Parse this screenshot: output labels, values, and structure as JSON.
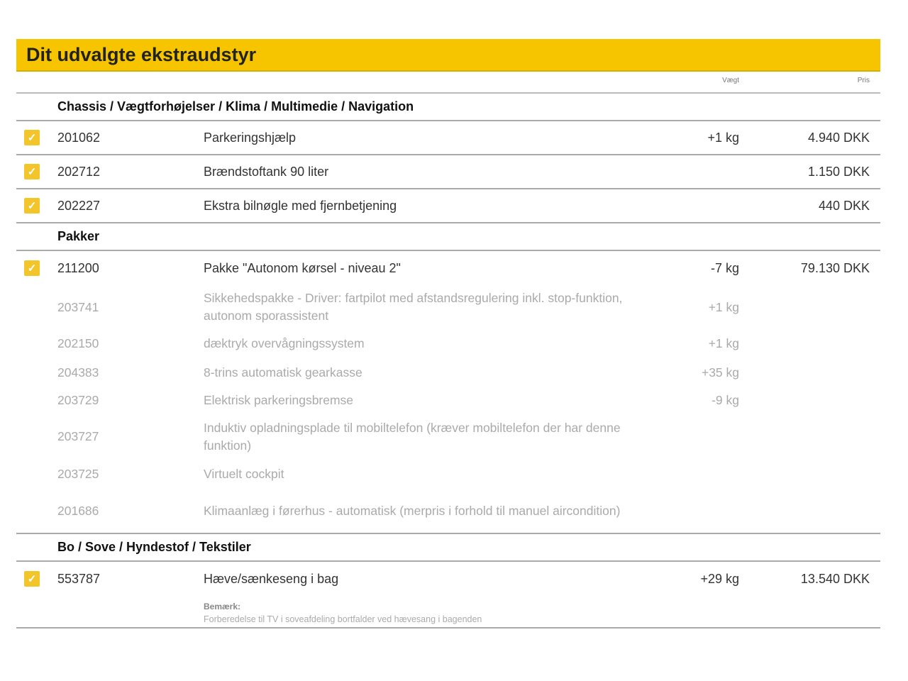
{
  "title": "Dit udvalgte ekstraudstyr",
  "columns": {
    "weight": "Vægt",
    "price": "Pris"
  },
  "rows": [
    {
      "type": "section",
      "label": "Chassis / Vægtforhøjelser / Klima / Multimedie / Navigation"
    },
    {
      "type": "item",
      "checked": true,
      "code": "201062",
      "desc": "Parkeringshjælp",
      "weight": "+1 kg",
      "price": "4.940 DKK"
    },
    {
      "type": "item",
      "checked": true,
      "code": "202712",
      "desc": "Brændstoftank 90 liter",
      "weight": "",
      "price": "1.150 DKK"
    },
    {
      "type": "item",
      "checked": true,
      "code": "202227",
      "desc": "Ekstra bilnøgle med fjernbetjening",
      "weight": "",
      "price": "440 DKK"
    },
    {
      "type": "section",
      "label": "Pakker"
    },
    {
      "type": "item",
      "checked": true,
      "code": "211200",
      "desc": "Pakke \"Autonom kørsel - niveau 2\"",
      "weight": "-7 kg",
      "price": "79.130 DKK",
      "nob": true
    },
    {
      "type": "sub",
      "code": "203741",
      "desc": "Sikkehedspakke - Driver: fartpilot med afstandsregulering inkl. stop-funktion, autonom sporassistent",
      "weight": "+1 kg",
      "h": 62
    },
    {
      "type": "sub",
      "code": "202150",
      "desc": "dæktryk overvågningssystem",
      "weight": "+1 kg",
      "h": 41
    },
    {
      "type": "sub",
      "code": "204383",
      "desc": "8-trins automatisk gearkasse",
      "weight": "+35 kg",
      "h": 40
    },
    {
      "type": "sub",
      "code": "203729",
      "desc": "Elektrisk parkeringsbremse",
      "weight": "-9 kg",
      "h": 39
    },
    {
      "type": "sub",
      "code": "203727",
      "desc": "Induktiv opladningsplade til mobiltelefon (kræver mobiltelefon der har denne funktion)",
      "weight": "",
      "h": 63
    },
    {
      "type": "sub",
      "code": "203725",
      "desc": "Virtuelt cockpit",
      "weight": "",
      "h": 42
    },
    {
      "type": "sub",
      "code": "201686",
      "desc": "Klimaanlæg i førerhus - automatisk (merpris i forhold til manuel aircondition)",
      "weight": "",
      "h": 64,
      "last": true
    },
    {
      "type": "section",
      "label": "Bo / Sove / Hyndestof / Tekstiler"
    },
    {
      "type": "item",
      "checked": true,
      "code": "553787",
      "desc": "Hæve/sænkeseng i bag",
      "weight": "+29 kg",
      "price": "13.540 DKK",
      "nob": true
    }
  ],
  "note": {
    "title": "Bemærk:",
    "body": "Forberedelse til TV i soveafdeling bortfalder ved hævesang i bagenden"
  },
  "colors": {
    "banner": "#f6c500",
    "checkbox": "#f2c52a"
  }
}
